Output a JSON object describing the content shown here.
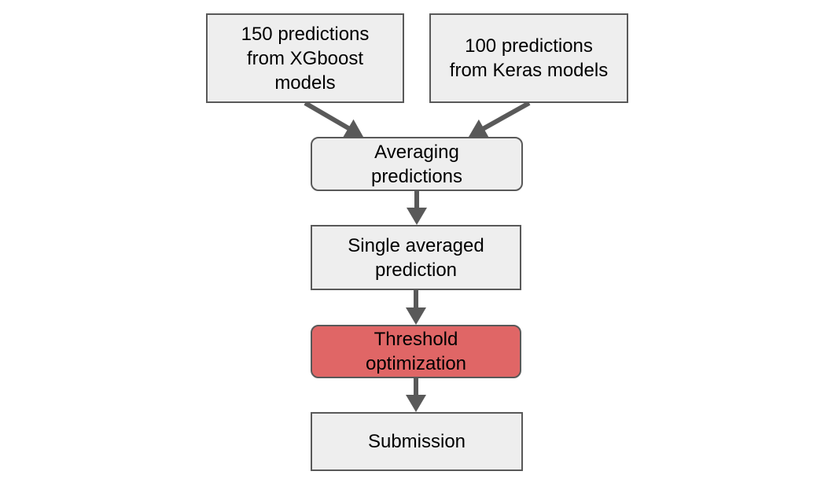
{
  "diagram": {
    "colors": {
      "box_fill": "#eeeeee",
      "box_border": "#595959",
      "highlight_fill": "#e06666",
      "arrow": "#595959"
    },
    "nodes": [
      {
        "id": "xgboost",
        "lines": [
          "150 predictions",
          "from XGboost",
          "models"
        ]
      },
      {
        "id": "keras",
        "lines": [
          "100 predictions",
          "from Keras models"
        ]
      },
      {
        "id": "averaging",
        "lines": [
          "Averaging",
          "predictions"
        ]
      },
      {
        "id": "single",
        "lines": [
          "Single averaged",
          "prediction"
        ]
      },
      {
        "id": "threshold",
        "lines": [
          "Threshold",
          "optimization"
        ]
      },
      {
        "id": "submission",
        "lines": [
          "Submission"
        ]
      }
    ],
    "edges": [
      {
        "from": "xgboost",
        "to": "averaging"
      },
      {
        "from": "keras",
        "to": "averaging"
      },
      {
        "from": "averaging",
        "to": "single"
      },
      {
        "from": "single",
        "to": "threshold"
      },
      {
        "from": "threshold",
        "to": "submission"
      }
    ]
  }
}
